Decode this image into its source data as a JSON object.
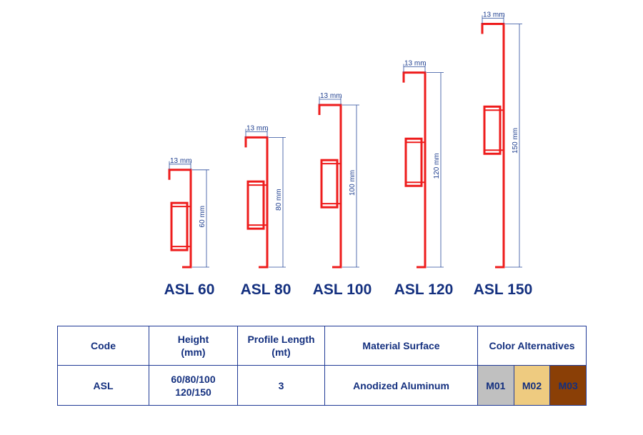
{
  "colors": {
    "profile": "#ee1c1c",
    "dimension_line": "#2a4b9b",
    "label": "#14307f"
  },
  "profiles": [
    {
      "name": "ASL 60",
      "width_label": "13 mm",
      "height_label": "60 mm",
      "height_mm": 60,
      "width_mm": 13
    },
    {
      "name": "ASL 80",
      "width_label": "13 mm",
      "height_label": "80 mm",
      "height_mm": 80,
      "width_mm": 13
    },
    {
      "name": "ASL 100",
      "width_label": "13 mm",
      "height_label": "100 mm",
      "height_mm": 100,
      "width_mm": 13
    },
    {
      "name": "ASL 120",
      "width_label": "13 mm",
      "height_label": "120 mm",
      "height_mm": 120,
      "width_mm": 13
    },
    {
      "name": "ASL 150",
      "width_label": "13 mm",
      "height_label": "150 mm",
      "height_mm": 150,
      "width_mm": 13
    }
  ],
  "table": {
    "headers": {
      "code": "Code",
      "height_line1": "Height",
      "height_line2": "(mm)",
      "length_line1": "Profile Length",
      "length_line2": "(mt)",
      "material": "Material Surface",
      "colors": "Color Alternatives"
    },
    "row": {
      "code": "ASL",
      "height_line1": "60/80/100",
      "height_line2": "120/150",
      "length": "3",
      "material": "Anodized Aluminum"
    },
    "color_swatches": [
      {
        "code": "M01",
        "color": "#c0c0c0"
      },
      {
        "code": "M02",
        "color": "#eecb80"
      },
      {
        "code": "M03",
        "color": "#8a3f06"
      }
    ]
  }
}
